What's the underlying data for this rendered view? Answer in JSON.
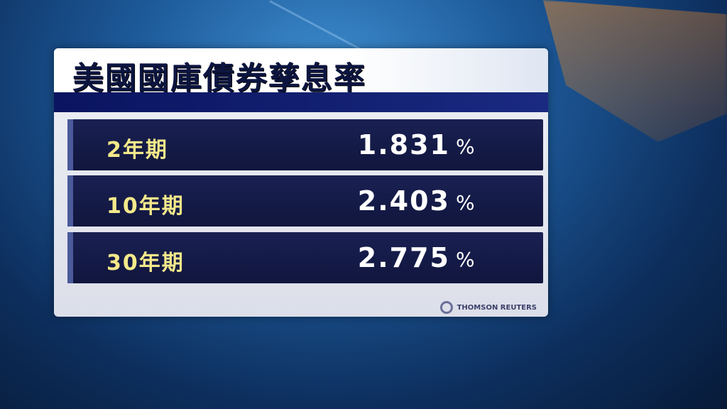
{
  "title": "美國國庫債券孳息率",
  "rows": [
    {
      "label": "2年期",
      "value": "1.831",
      "unit": "%"
    },
    {
      "label": "10年期",
      "value": "2.403",
      "unit": "%"
    },
    {
      "label": "30年期",
      "value": "2.775",
      "unit": "%"
    }
  ],
  "source": "THOMSON REUTERS",
  "colors": {
    "title": "#0c1540",
    "label": "#f4e98a",
    "value": "#ffffff",
    "row_bg": "#151b48",
    "band": "#0a1460"
  }
}
